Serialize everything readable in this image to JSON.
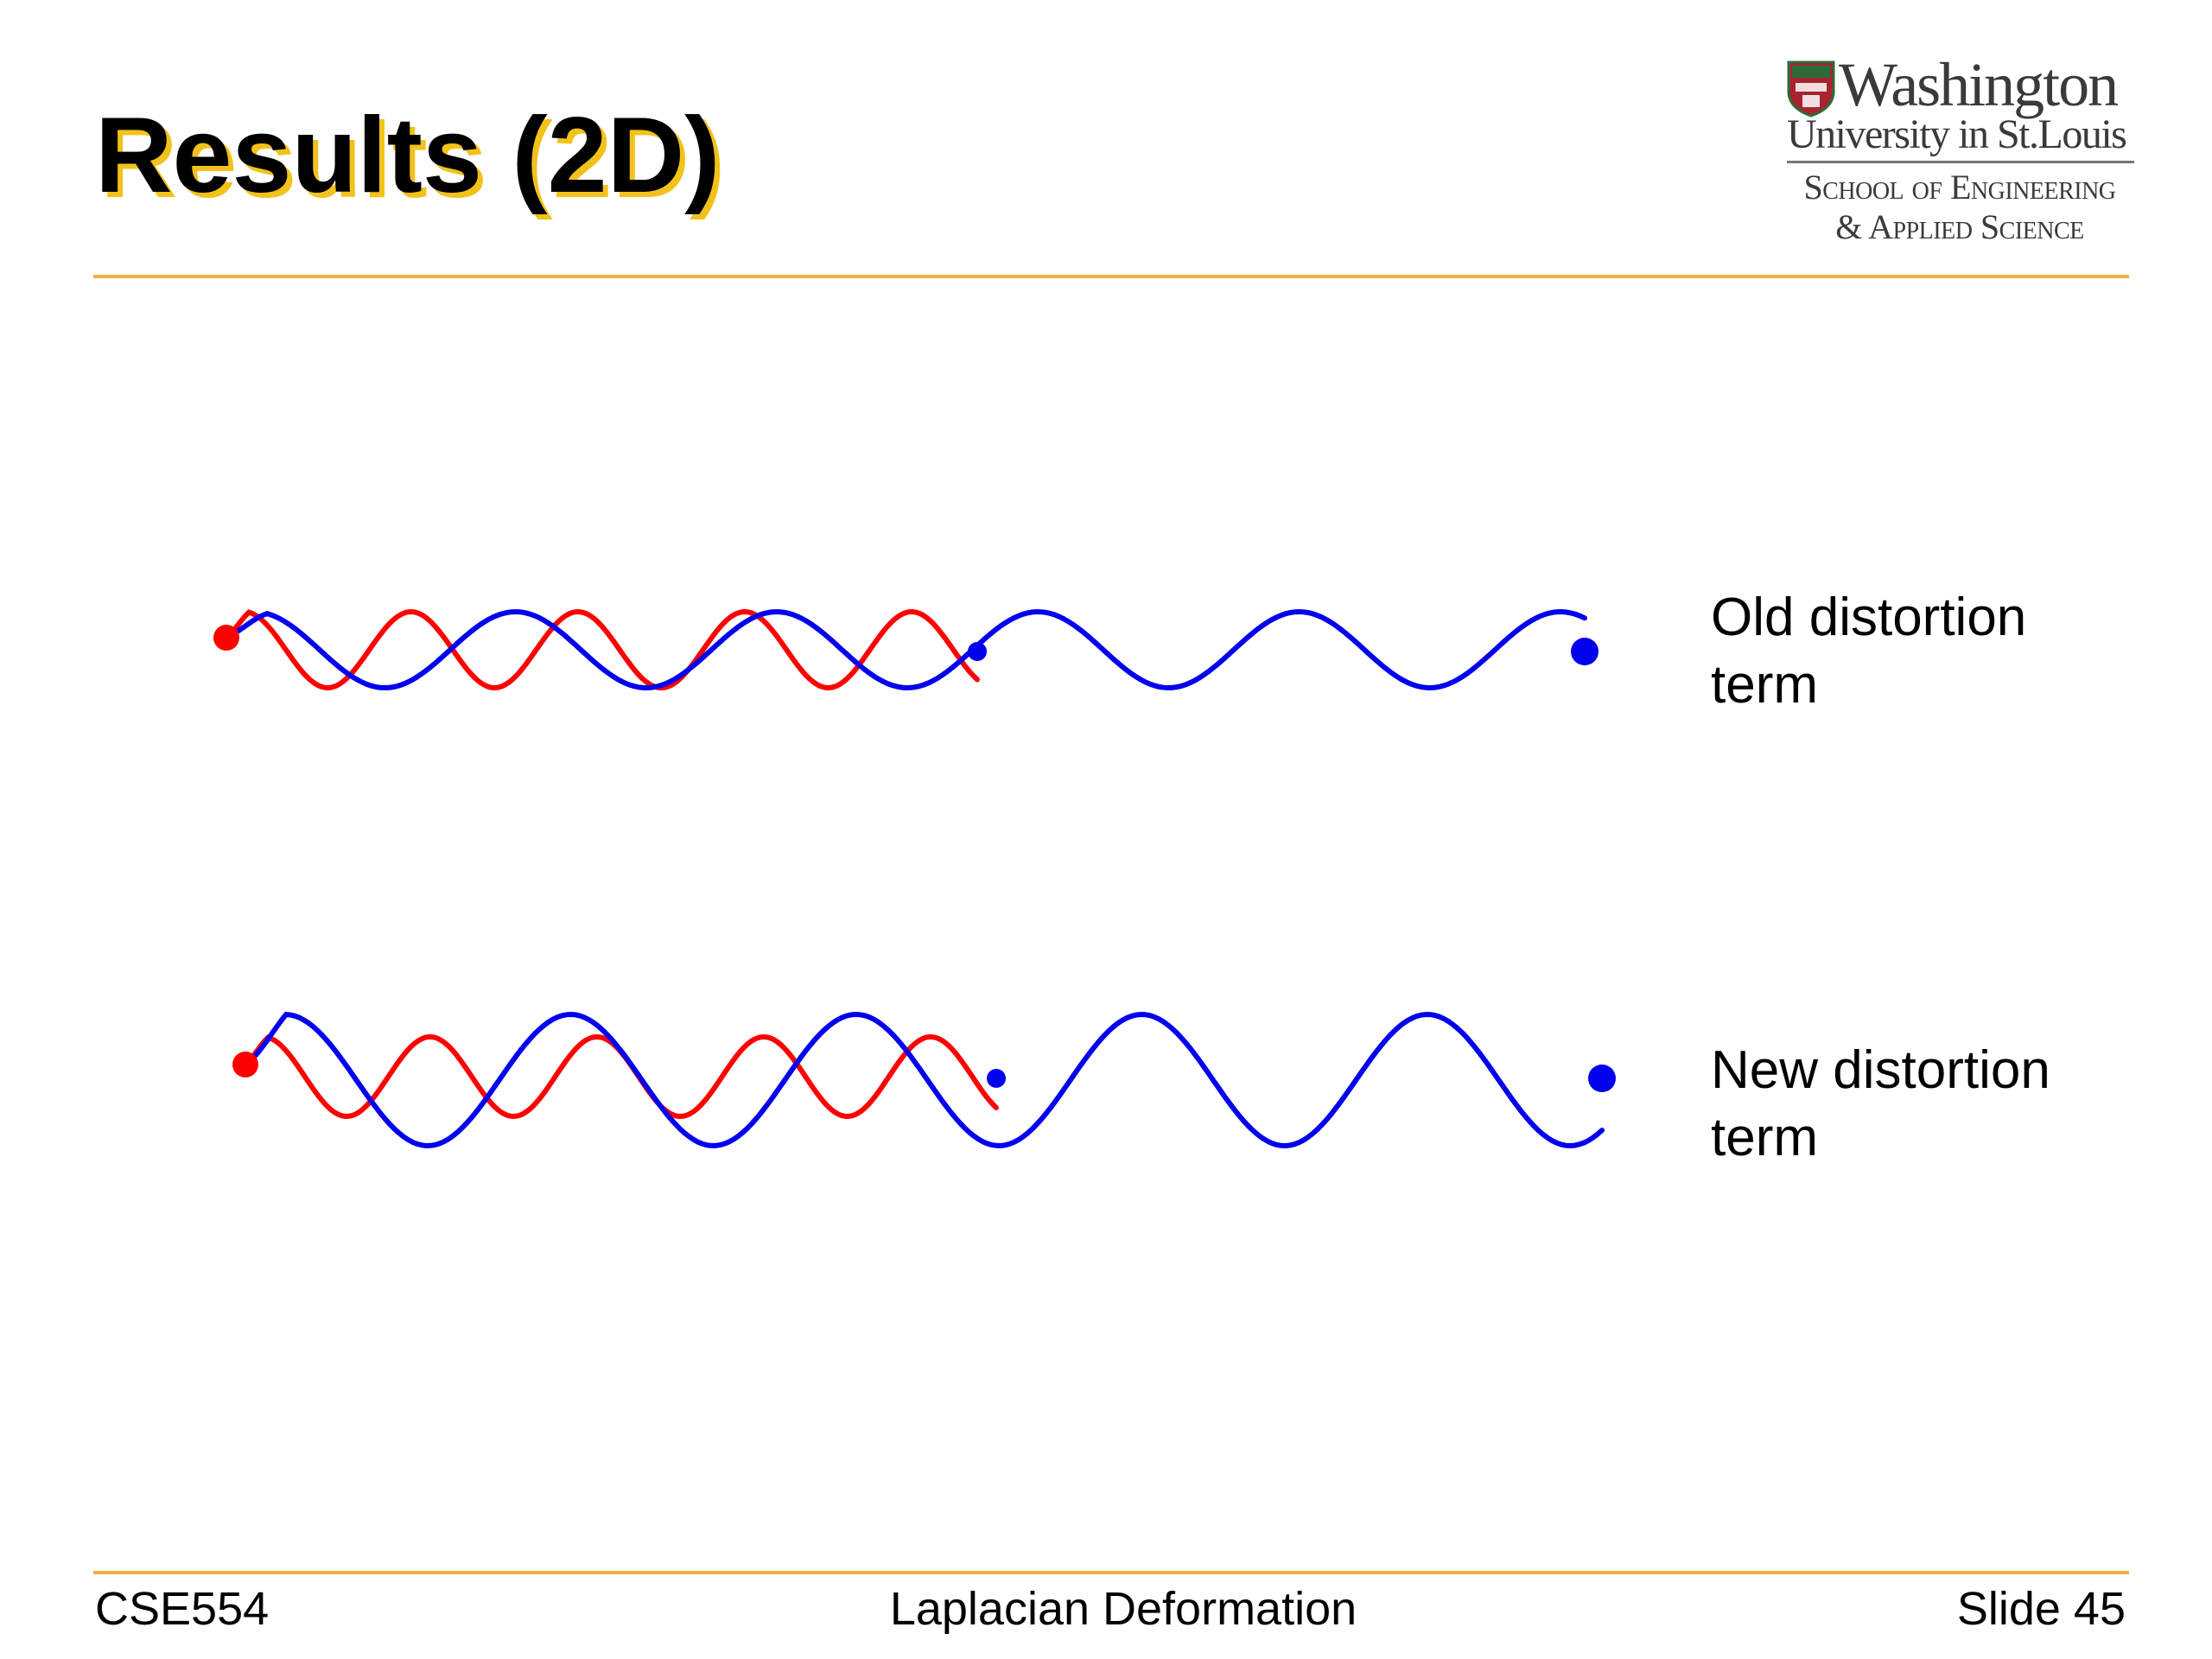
{
  "slide": {
    "title": "Results (2D)"
  },
  "logo": {
    "line1": "Washington",
    "line2": "University in St.Louis",
    "line3": "School of Engineering",
    "line4": "& Applied Science"
  },
  "figure": {
    "captions": {
      "old": [
        "Old distortion",
        "term"
      ],
      "new": [
        "New distortion",
        "term"
      ]
    },
    "colors": {
      "original": "#ff0000",
      "deformed": "#0000ee"
    }
  },
  "footer": {
    "course": "CSE554",
    "topic": "Laplacian Deformation",
    "slide_number": "Slide 45"
  },
  "colors": {
    "rule": "#f0b040",
    "title_shadow": "#f3c21a"
  }
}
